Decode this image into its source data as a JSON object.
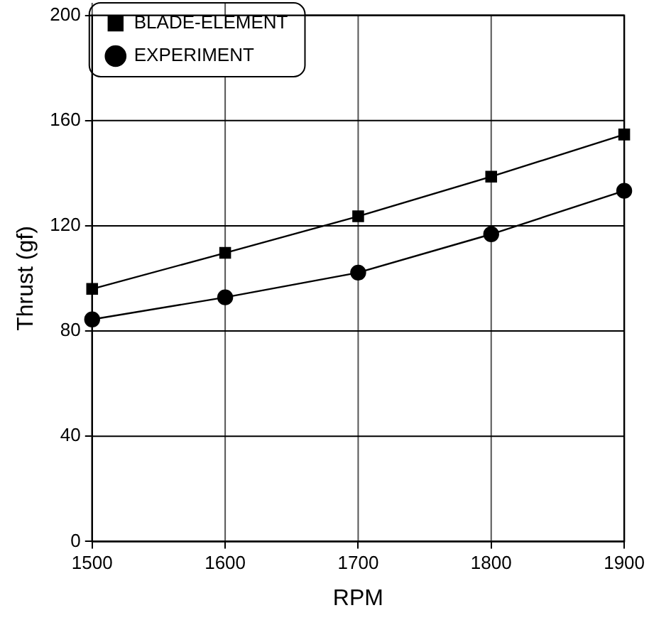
{
  "chart_data": {
    "type": "line",
    "xlabel": "RPM",
    "ylabel": "Thrust (gf)",
    "x": [
      1500,
      1600,
      1700,
      1800,
      1900
    ],
    "series": [
      {
        "name": "BLADE-ELEMENT",
        "color": "#000000",
        "marker": "square",
        "values": [
          96,
          109.7,
          123.6,
          138.7,
          154.7
        ]
      },
      {
        "name": "EXPERIMENT",
        "color": "#000000",
        "marker": "circle",
        "values": [
          84.4,
          92.8,
          102.2,
          116.8,
          133.3
        ]
      }
    ],
    "xlim": [
      1500,
      1900
    ],
    "xticks": [
      1500,
      1600,
      1700,
      1800,
      1900
    ],
    "ylim": [
      0,
      200
    ],
    "yticks": [
      0,
      40,
      80,
      120,
      160,
      200
    ],
    "grid": true,
    "legend": "top left",
    "line_style": "solid"
  }
}
